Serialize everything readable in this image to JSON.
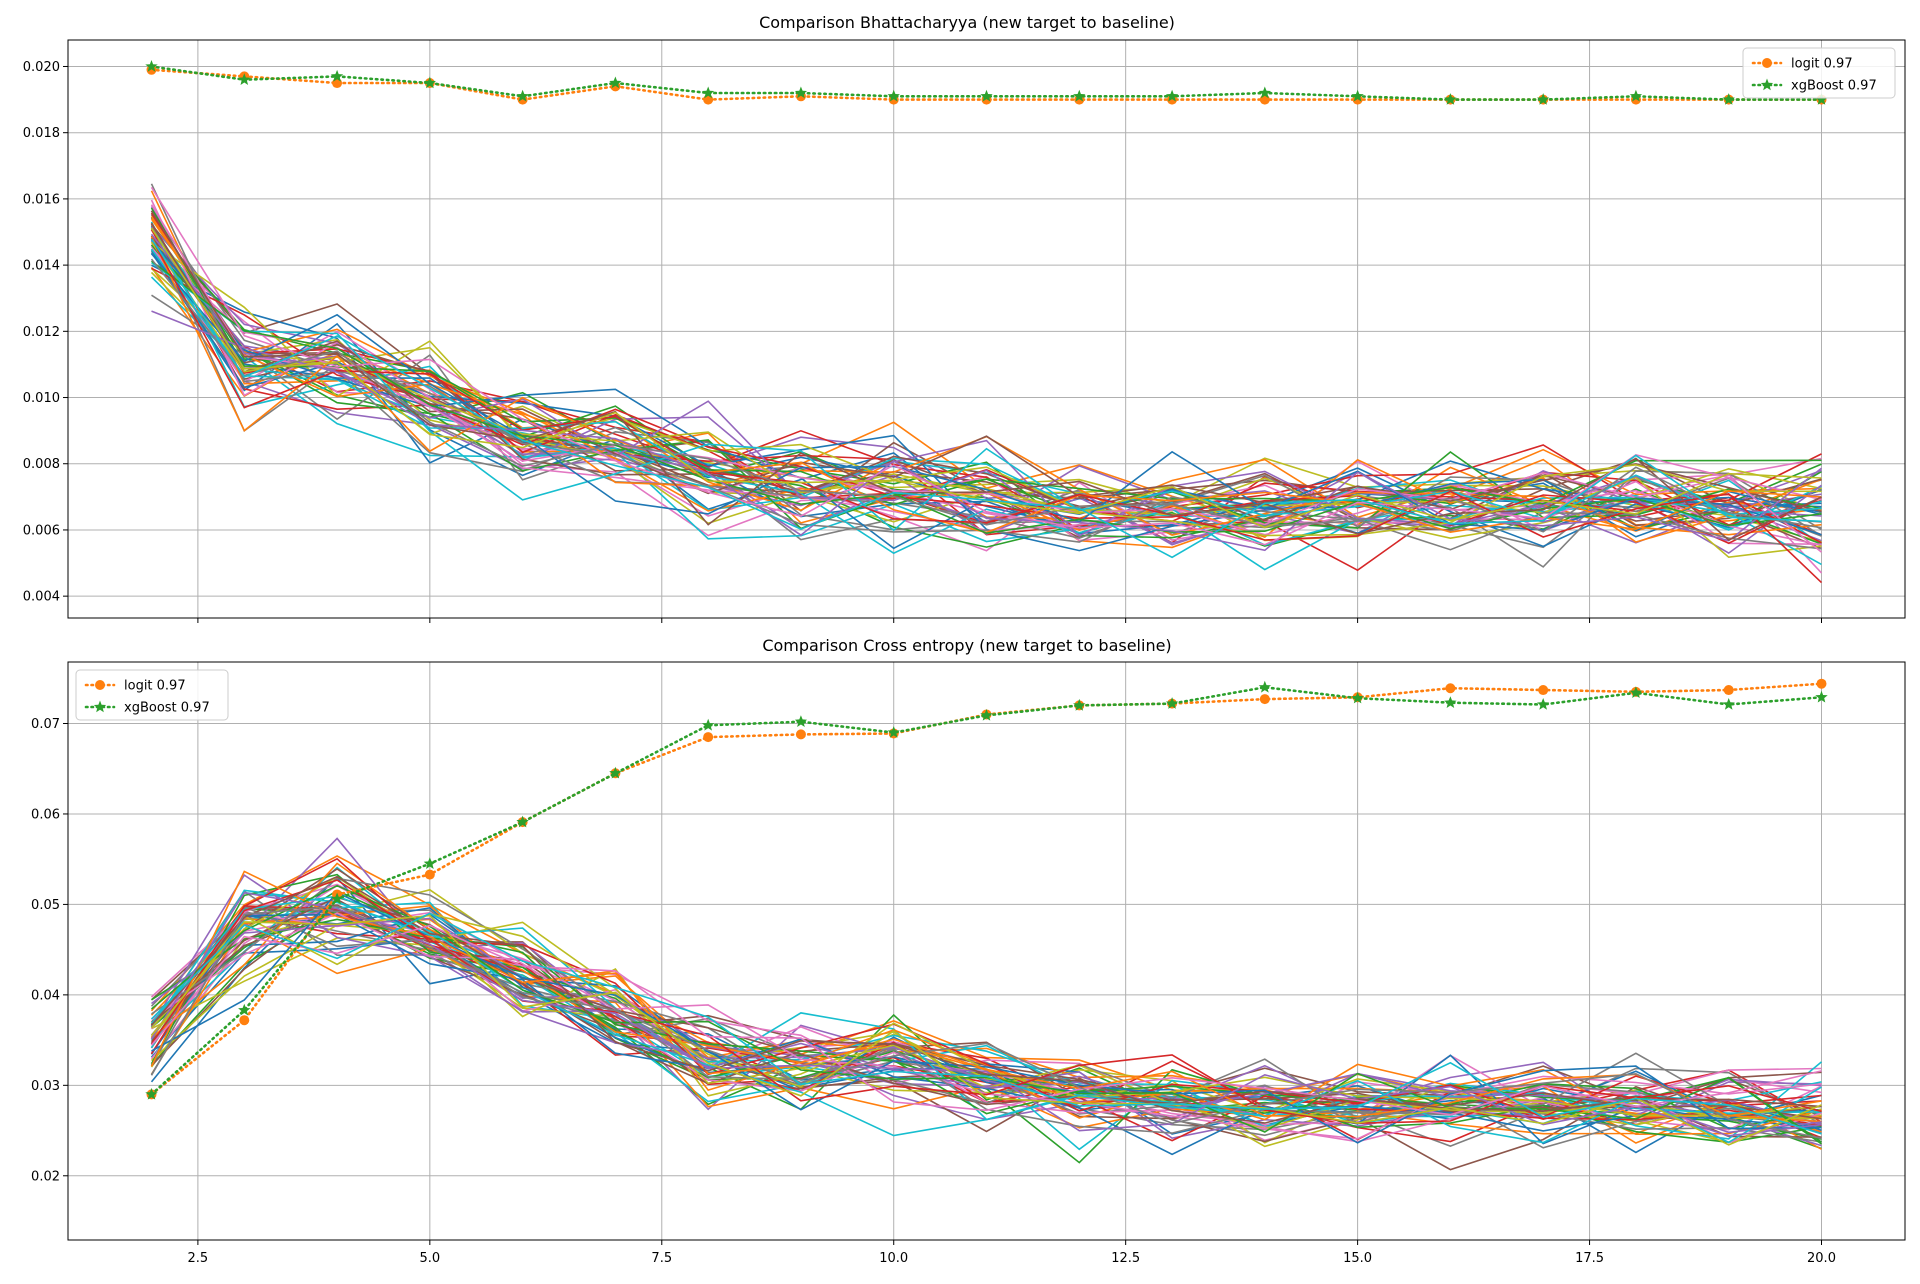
{
  "chart_data": [
    {
      "type": "line",
      "title": "Comparison Bhattacharyya (new target to baseline)",
      "xlabel": "",
      "ylabel": "",
      "x": [
        2,
        3,
        4,
        5,
        6,
        7,
        8,
        9,
        10,
        11,
        12,
        13,
        14,
        15,
        16,
        17,
        18,
        19,
        20
      ],
      "xlim": [
        1.1,
        20.9
      ],
      "ylim": [
        0.00334,
        0.0208
      ],
      "xticks": [
        "2.5",
        "5.0",
        "7.5",
        "10.0",
        "12.5",
        "15.0",
        "17.5",
        "20.0"
      ],
      "yticks": [
        "0.004",
        "0.006",
        "0.008",
        "0.010",
        "0.012",
        "0.014",
        "0.016",
        "0.018",
        "0.020"
      ],
      "ytick_values": [
        0.004,
        0.006,
        0.008,
        0.01,
        0.012,
        0.014,
        0.016,
        0.018,
        0.02
      ],
      "xtick_values": [
        2.5,
        5.0,
        7.5,
        10.0,
        12.5,
        15.0,
        17.5,
        20.0
      ],
      "grid": true,
      "legend_position": "top-right",
      "series": [
        {
          "name": "logit 0.97",
          "color": "#ff7f0e",
          "style": "dotted",
          "marker": "circle",
          "values": [
            0.0199,
            0.0197,
            0.0195,
            0.0195,
            0.019,
            0.0194,
            0.019,
            0.0191,
            0.019,
            0.019,
            0.019,
            0.019,
            0.019,
            0.019,
            0.019,
            0.019,
            0.019,
            0.019,
            0.019
          ]
        },
        {
          "name": "xgBoost 0.97",
          "color": "#2ca02c",
          "style": "dotted",
          "marker": "star",
          "values": [
            0.02,
            0.0196,
            0.0197,
            0.0195,
            0.0191,
            0.0195,
            0.0192,
            0.0192,
            0.0191,
            0.0191,
            0.0191,
            0.0191,
            0.0192,
            0.0191,
            0.019,
            0.019,
            0.0191,
            0.019,
            0.019
          ]
        }
      ],
      "background_lines": {
        "description_count": 60,
        "band_center": [
          0.015,
          0.0108,
          0.011,
          0.01,
          0.0088,
          0.0085,
          0.0075,
          0.0073,
          0.0072,
          0.0068,
          0.0066,
          0.0067,
          0.0066,
          0.0068,
          0.0068,
          0.0068,
          0.0069,
          0.0068,
          0.0066
        ],
        "band_spread": [
          0.0009,
          0.0009,
          0.001,
          0.0009,
          0.0009,
          0.0009,
          0.001,
          0.001,
          0.0009,
          0.0009,
          0.0009,
          0.0008,
          0.0008,
          0.0008,
          0.0007,
          0.0008,
          0.0008,
          0.0008,
          0.001
        ]
      }
    },
    {
      "type": "line",
      "title": "Comparison Cross entropy (new target to baseline)",
      "xlabel": "",
      "ylabel": "",
      "x": [
        2,
        3,
        4,
        5,
        6,
        7,
        8,
        9,
        10,
        11,
        12,
        13,
        14,
        15,
        16,
        17,
        18,
        19,
        20
      ],
      "xlim": [
        1.1,
        20.9
      ],
      "ylim": [
        0.0129,
        0.0768
      ],
      "xticks": [
        "2.5",
        "5.0",
        "7.5",
        "10.0",
        "12.5",
        "15.0",
        "17.5",
        "20.0"
      ],
      "yticks": [
        "0.02",
        "0.03",
        "0.04",
        "0.05",
        "0.06",
        "0.07"
      ],
      "ytick_values": [
        0.02,
        0.03,
        0.04,
        0.05,
        0.06,
        0.07
      ],
      "xtick_values": [
        2.5,
        5.0,
        7.5,
        10.0,
        12.5,
        15.0,
        17.5,
        20.0
      ],
      "grid": true,
      "legend_position": "top-left",
      "series": [
        {
          "name": "logit 0.97",
          "color": "#ff7f0e",
          "style": "dotted",
          "marker": "circle",
          "values": [
            0.029,
            0.0372,
            0.0511,
            0.0533,
            0.0591,
            0.0645,
            0.0685,
            0.0688,
            0.0689,
            0.071,
            0.072,
            0.0722,
            0.0727,
            0.0729,
            0.0739,
            0.0737,
            0.0735,
            0.0737,
            0.0744
          ]
        },
        {
          "name": "xgBoost 0.97",
          "color": "#2ca02c",
          "style": "dotted",
          "marker": "star",
          "values": [
            0.029,
            0.0383,
            0.0506,
            0.0545,
            0.0591,
            0.0645,
            0.0698,
            0.0702,
            0.069,
            0.0709,
            0.072,
            0.0722,
            0.074,
            0.0728,
            0.0723,
            0.0721,
            0.0734,
            0.0721,
            0.0729
          ]
        }
      ],
      "background_lines": {
        "description_count": 60,
        "band_center": [
          0.036,
          0.048,
          0.049,
          0.047,
          0.042,
          0.038,
          0.033,
          0.032,
          0.032,
          0.03,
          0.029,
          0.028,
          0.0275,
          0.028,
          0.028,
          0.028,
          0.028,
          0.0275,
          0.0265
        ],
        "band_spread": [
          0.0025,
          0.0035,
          0.0035,
          0.003,
          0.003,
          0.003,
          0.003,
          0.003,
          0.003,
          0.0028,
          0.0026,
          0.0025,
          0.0025,
          0.0024,
          0.0024,
          0.0025,
          0.0025,
          0.0025,
          0.003
        ]
      }
    }
  ],
  "colors": {
    "palette": [
      "#1f77b4",
      "#ff7f0e",
      "#2ca02c",
      "#d62728",
      "#9467bd",
      "#8c564b",
      "#e377c2",
      "#7f7f7f",
      "#bcbd22",
      "#17becf"
    ],
    "grid": "#b0b0b0",
    "axis": "#000000"
  }
}
